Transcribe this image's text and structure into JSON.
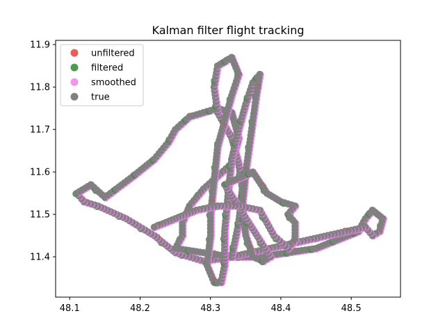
{
  "chart_data": {
    "type": "scatter",
    "title": "Kalman filter flight tracking",
    "xlabel": "",
    "ylabel": "",
    "xlim": [
      48.08,
      48.57
    ],
    "ylim": [
      11.305,
      11.91
    ],
    "x_ticks": [
      48.1,
      48.2,
      48.3,
      48.4,
      48.5
    ],
    "y_ticks": [
      11.4,
      11.5,
      11.6,
      11.7,
      11.8,
      11.9
    ],
    "x_tick_labels": [
      "48.1",
      "48.2",
      "48.3",
      "48.4",
      "48.5"
    ],
    "y_tick_labels": [
      "11.4",
      "11.5",
      "11.6",
      "11.7",
      "11.8",
      "11.9"
    ],
    "grid": false,
    "legend_position": "top-left",
    "track": [
      [
        48.33,
        11.4
      ],
      [
        48.29,
        11.39
      ],
      [
        48.25,
        11.41
      ],
      [
        48.22,
        11.45
      ],
      [
        48.18,
        11.49
      ],
      [
        48.14,
        11.52
      ],
      [
        48.12,
        11.53
      ],
      [
        48.11,
        11.55
      ],
      [
        48.13,
        11.57
      ],
      [
        48.15,
        11.54
      ],
      [
        48.19,
        11.59
      ],
      [
        48.22,
        11.63
      ],
      [
        48.24,
        11.67
      ],
      [
        48.25,
        11.7
      ],
      [
        48.27,
        11.73
      ],
      [
        48.31,
        11.75
      ],
      [
        48.31,
        11.75
      ],
      [
        48.33,
        11.74
      ],
      [
        48.34,
        11.68
      ],
      [
        48.33,
        11.62
      ],
      [
        48.31,
        11.59
      ],
      [
        48.29,
        11.56
      ],
      [
        48.27,
        11.52
      ],
      [
        48.26,
        11.48
      ],
      [
        48.26,
        11.45
      ],
      [
        48.25,
        11.42
      ],
      [
        48.33,
        11.4
      ],
      [
        48.37,
        11.4
      ],
      [
        48.41,
        11.41
      ],
      [
        48.45,
        11.42
      ],
      [
        48.48,
        11.44
      ],
      [
        48.51,
        11.46
      ],
      [
        48.52,
        11.49
      ],
      [
        48.53,
        11.51
      ],
      [
        48.545,
        11.49
      ],
      [
        48.54,
        11.46
      ],
      [
        48.53,
        11.45
      ],
      [
        48.52,
        11.47
      ],
      [
        48.33,
        11.4
      ],
      [
        48.34,
        11.48
      ],
      [
        48.345,
        11.56
      ],
      [
        48.34,
        11.62
      ],
      [
        48.33,
        11.68
      ],
      [
        48.31,
        11.74
      ],
      [
        48.305,
        11.8
      ],
      [
        48.31,
        11.85
      ],
      [
        48.33,
        11.87
      ],
      [
        48.34,
        11.83
      ],
      [
        48.33,
        11.78
      ],
      [
        48.32,
        11.72
      ],
      [
        48.31,
        11.66
      ],
      [
        48.305,
        11.58
      ],
      [
        48.3,
        11.5
      ],
      [
        48.3,
        11.45
      ],
      [
        48.295,
        11.38
      ],
      [
        48.305,
        11.34
      ],
      [
        48.315,
        11.34
      ],
      [
        48.32,
        11.38
      ],
      [
        48.32,
        11.46
      ],
      [
        48.325,
        11.55
      ],
      [
        48.33,
        11.63
      ],
      [
        48.34,
        11.7
      ],
      [
        48.35,
        11.76
      ],
      [
        48.36,
        11.81
      ],
      [
        48.36,
        11.81
      ],
      [
        48.37,
        11.83
      ],
      [
        48.365,
        11.78
      ],
      [
        48.36,
        11.72
      ],
      [
        48.355,
        11.66
      ],
      [
        48.35,
        11.6
      ],
      [
        48.345,
        11.52
      ],
      [
        48.35,
        11.45
      ],
      [
        48.36,
        11.4
      ],
      [
        48.375,
        11.39
      ],
      [
        48.385,
        11.4
      ],
      [
        48.32,
        11.57
      ],
      [
        48.36,
        11.6
      ],
      [
        48.38,
        11.55
      ],
      [
        48.4,
        11.53
      ],
      [
        48.42,
        11.52
      ],
      [
        48.41,
        11.5
      ],
      [
        48.42,
        11.48
      ],
      [
        48.42,
        11.44
      ],
      [
        48.41,
        11.42
      ],
      [
        48.39,
        11.45
      ],
      [
        48.37,
        11.51
      ],
      [
        48.34,
        11.52
      ],
      [
        48.31,
        11.52
      ],
      [
        48.28,
        11.51
      ],
      [
        48.25,
        11.49
      ],
      [
        48.22,
        11.47
      ]
    ],
    "series": [
      {
        "name": "unfiltered",
        "color": "#e8413c"
      },
      {
        "name": "filtered",
        "color": "#2e8b2e"
      },
      {
        "name": "smoothed",
        "color": "#ee82ee"
      },
      {
        "name": "true",
        "color": "#808080"
      }
    ]
  }
}
